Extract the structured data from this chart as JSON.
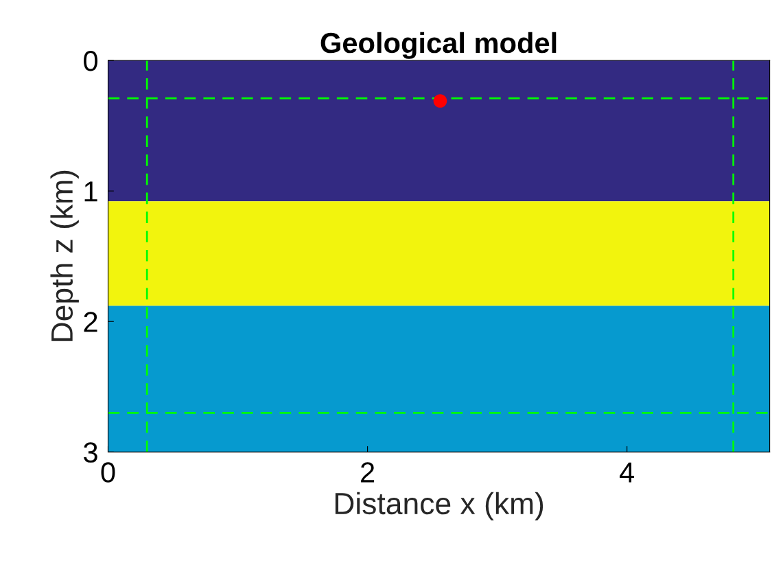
{
  "chart_data": {
    "type": "scatter",
    "title": "Geological model",
    "xlabel": "Distance x (km)",
    "ylabel": "Depth z (km)",
    "series": [
      {
        "color": "#ff0000",
        "x": [
          2.56
        ],
        "values": [
          0.31
        ]
      }
    ],
    "marker": "circle",
    "xlim": [
      0,
      5.1
    ],
    "xticks": [
      0,
      2,
      4
    ],
    "ylim": [
      3,
      0
    ],
    "yticks": [
      0,
      1,
      2,
      3
    ],
    "bands": [
      {
        "axis": "y",
        "from": 0,
        "to": 1.08,
        "color": "#332a82"
      },
      {
        "axis": "y",
        "from": 1.08,
        "to": 1.88,
        "color": "#f2f40d"
      },
      {
        "axis": "y",
        "from": 1.88,
        "to": 3,
        "color": "#069acf"
      }
    ],
    "ref_lines": [
      {
        "axis": "x",
        "value": 0.3,
        "color": "#00ff00",
        "line_style": "dashed"
      },
      {
        "axis": "x",
        "value": 4.82,
        "color": "#00ff00",
        "line_style": "dashed"
      },
      {
        "axis": "y",
        "value": 0.29,
        "color": "#00ff00",
        "line_style": "dashed"
      },
      {
        "axis": "y",
        "value": 2.7,
        "color": "#00ff00",
        "line_style": "dashed"
      }
    ],
    "grid": false
  }
}
